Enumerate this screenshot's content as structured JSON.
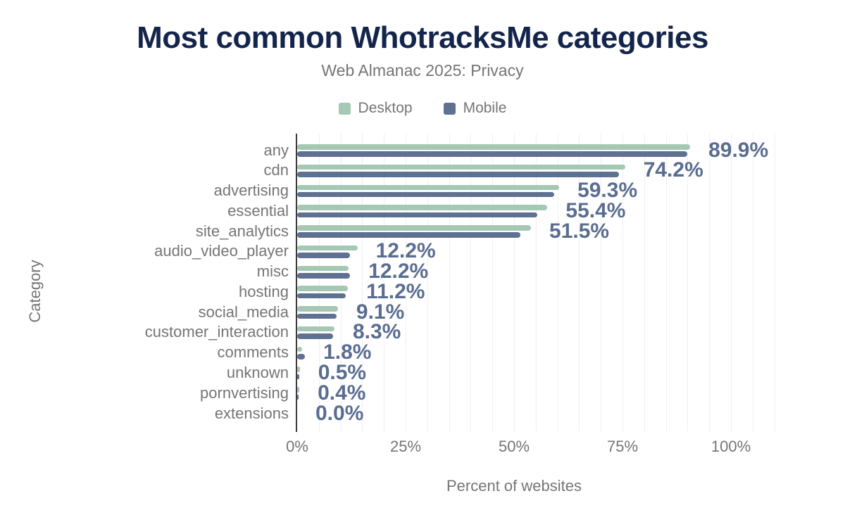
{
  "chart_data": {
    "type": "bar",
    "orientation": "horizontal",
    "title": "Most common WhotracksMe categories",
    "subtitle": "Web Almanac 2025: Privacy",
    "xlabel": "Percent of websites",
    "ylabel": "Category",
    "legend_position": "top",
    "grid": "faint vertical gridlines every 5%",
    "xlim": [
      0,
      112.5
    ],
    "x_ticks": [
      "0%",
      "25%",
      "50%",
      "75%",
      "100%"
    ],
    "x_tick_values": [
      0,
      25,
      50,
      75,
      100
    ],
    "categories": [
      "any",
      "cdn",
      "advertising",
      "essential",
      "site_analytics",
      "audio_video_player",
      "misc",
      "hosting",
      "social_media",
      "customer_interaction",
      "comments",
      "unknown",
      "pornvertising",
      "extensions"
    ],
    "series": [
      {
        "name": "Desktop",
        "color": "#a5c8b4",
        "values": [
          90.6,
          75.6,
          60.4,
          57.7,
          53.9,
          13.9,
          11.9,
          11.7,
          9.4,
          8.6,
          1.2,
          0.6,
          0.5,
          0.0
        ]
      },
      {
        "name": "Mobile",
        "color": "#5e7190",
        "values": [
          89.9,
          74.2,
          59.3,
          55.4,
          51.5,
          12.2,
          12.2,
          11.2,
          9.1,
          8.3,
          1.8,
          0.5,
          0.4,
          0.0
        ]
      }
    ],
    "value_labels": [
      "89.9%",
      "74.2%",
      "59.3%",
      "55.4%",
      "51.5%",
      "12.2%",
      "12.2%",
      "11.2%",
      "9.1%",
      "8.3%",
      "1.8%",
      "0.5%",
      "0.4%",
      "0.0%"
    ],
    "value_labels_series": "Mobile"
  },
  "colors": {
    "title": "#14254c",
    "muted_text": "#757575",
    "value_label": "#5a6d91",
    "gridline": "#f0f0f0",
    "axis_line": "#3b3b3b",
    "background": "#ffffff"
  }
}
